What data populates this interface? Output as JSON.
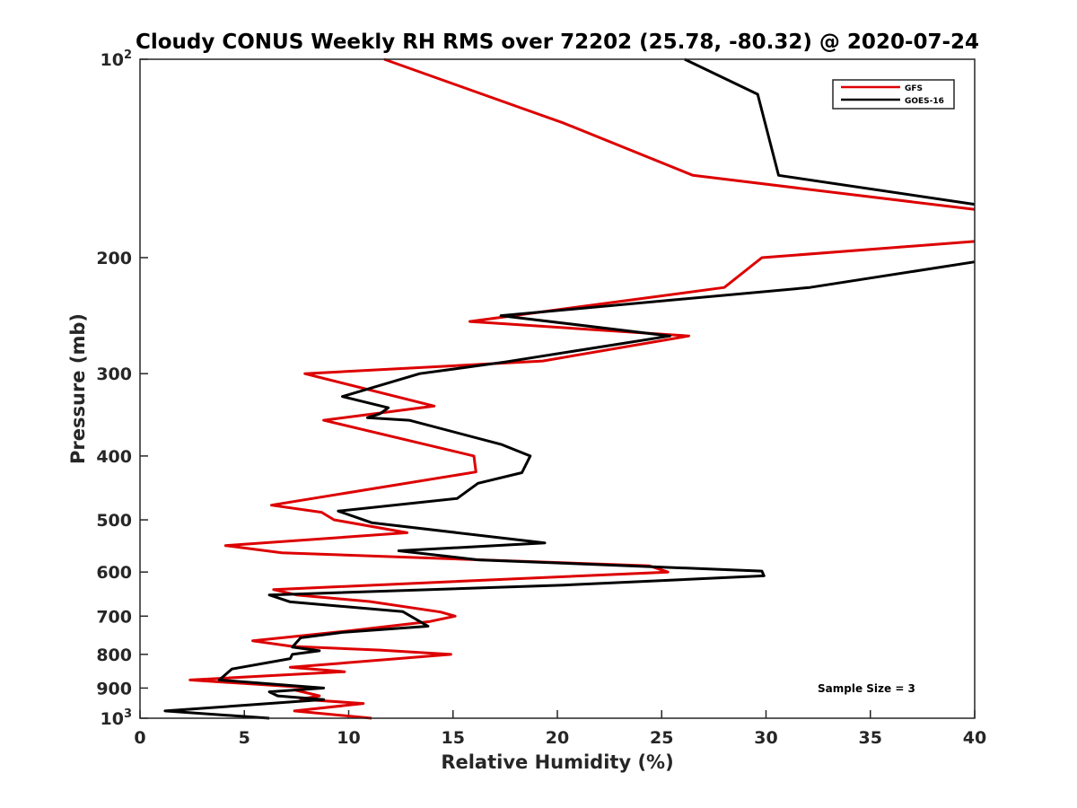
{
  "chart_data": {
    "type": "line",
    "title": "Cloudy CONUS Weekly RH RMS over 72202 (25.78, -80.32) @ 2020-07-24",
    "xlabel": "Relative Humidity (%)",
    "ylabel": "Pressure (mb)",
    "xlim": [
      0,
      40
    ],
    "ylim": [
      100,
      1000
    ],
    "y_scale": "log",
    "y_reversed": true,
    "x_ticks": [
      "0",
      "5",
      "10",
      "15",
      "20",
      "25",
      "30",
      "35",
      "40"
    ],
    "y_ticks": [
      {
        "value": 100,
        "base": "10",
        "exp": "2"
      },
      {
        "value": 200,
        "label": "200"
      },
      {
        "value": 300,
        "label": "300"
      },
      {
        "value": 400,
        "label": "400"
      },
      {
        "value": 500,
        "label": "500"
      },
      {
        "value": 600,
        "label": "600"
      },
      {
        "value": 700,
        "label": "700"
      },
      {
        "value": 800,
        "label": "800"
      },
      {
        "value": 900,
        "label": "900"
      },
      {
        "value": 1000,
        "base": "10",
        "exp": "3"
      }
    ],
    "legend_position": "top-right",
    "annotation": "Sample Size = 3",
    "series": [
      {
        "name": "GFS",
        "color": "#dd0000",
        "points": [
          [
            11.7,
            100
          ],
          [
            20.3,
            125
          ],
          [
            26.5,
            150
          ],
          [
            40,
            169
          ],
          [
            null,
            null
          ],
          [
            40,
            189
          ],
          [
            29.8,
            200
          ],
          [
            28,
            222
          ],
          [
            15.8,
            250
          ],
          [
            26.3,
            263
          ],
          [
            19.3,
            287
          ],
          [
            7.9,
            300
          ],
          [
            14.1,
            336
          ],
          [
            8.8,
            353
          ],
          [
            16,
            400
          ],
          [
            16.1,
            423
          ],
          [
            6.3,
            475
          ],
          [
            8.7,
            487
          ],
          [
            9.3,
            500
          ],
          [
            12.8,
            523
          ],
          [
            4.1,
            547
          ],
          [
            6.8,
            561
          ],
          [
            24.4,
            587
          ],
          [
            25.3,
            600
          ],
          [
            6.4,
            638
          ],
          [
            7.5,
            650
          ],
          [
            11,
            665
          ],
          [
            14.4,
            690
          ],
          [
            15.1,
            700
          ],
          [
            13.9,
            713
          ],
          [
            10,
            737
          ],
          [
            5.4,
            763
          ],
          [
            7.3,
            778
          ],
          [
            11.5,
            788
          ],
          [
            14.9,
            800
          ],
          [
            7.2,
            837
          ],
          [
            9.8,
            850
          ],
          [
            2.4,
            875
          ],
          [
            8.4,
            900
          ],
          [
            7.4,
            906
          ],
          [
            8.6,
            925
          ],
          [
            7.7,
            936
          ],
          [
            10.7,
            950
          ],
          [
            7.4,
            975
          ],
          [
            11.1,
            1000
          ]
        ]
      },
      {
        "name": "GOES-16",
        "color": "#000000",
        "points": [
          [
            26.1,
            100
          ],
          [
            29.6,
            113
          ],
          [
            30.6,
            150
          ],
          [
            40,
            166
          ],
          [
            null,
            null
          ],
          [
            40,
            203
          ],
          [
            32.1,
            222
          ],
          [
            17.3,
            245
          ],
          [
            25.4,
            263
          ],
          [
            17.5,
            288
          ],
          [
            13.4,
            300
          ],
          [
            9.7,
            325
          ],
          [
            11.9,
            338
          ],
          [
            11.5,
            345
          ],
          [
            10.9,
            350
          ],
          [
            12.9,
            353
          ],
          [
            17.3,
            384
          ],
          [
            18.7,
            400
          ],
          [
            18.3,
            424
          ],
          [
            16.2,
            440
          ],
          [
            15.2,
            464
          ],
          [
            9.5,
            485
          ],
          [
            11.1,
            505
          ],
          [
            19.4,
            542
          ],
          [
            12.4,
            557
          ],
          [
            16.2,
            575
          ],
          [
            29.8,
            598
          ],
          [
            29.9,
            608
          ],
          [
            20.3,
            628
          ],
          [
            6.2,
            650
          ],
          [
            7.2,
            666
          ],
          [
            12.6,
            689
          ],
          [
            13.8,
            725
          ],
          [
            9.7,
            741
          ],
          [
            7.7,
            755
          ],
          [
            7.3,
            780
          ],
          [
            8.6,
            790
          ],
          [
            7.3,
            800
          ],
          [
            7.2,
            812
          ],
          [
            4.4,
            842
          ],
          [
            3.8,
            875
          ],
          [
            8.8,
            900
          ],
          [
            6.2,
            912
          ],
          [
            6.6,
            925
          ],
          [
            8.8,
            937
          ],
          [
            1.2,
            975
          ],
          [
            6.2,
            1000
          ]
        ]
      }
    ]
  }
}
